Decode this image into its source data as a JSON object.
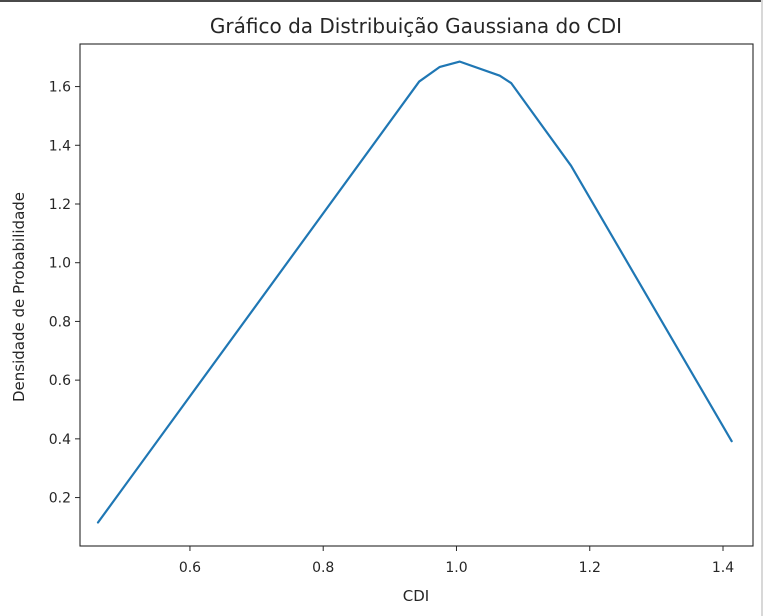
{
  "chart_data": {
    "type": "line",
    "title": "Gráfico da Distribuição Gaussiana do CDI",
    "xlabel": "CDI",
    "ylabel": "Densidade de Probabilidade",
    "xlim": [
      0.435,
      1.445
    ],
    "ylim": [
      0.035,
      1.745
    ],
    "xticks": [
      0.6,
      0.8,
      1.0,
      1.2,
      1.4
    ],
    "xtick_labels": [
      "0.6",
      "0.8",
      "1.0",
      "1.2",
      "1.4"
    ],
    "yticks": [
      0.2,
      0.4,
      0.6,
      0.8,
      1.0,
      1.2,
      1.4,
      1.6
    ],
    "ytick_labels": [
      "0.2",
      "0.4",
      "0.6",
      "0.8",
      "1.0",
      "1.2",
      "1.4",
      "1.6"
    ],
    "grid": false,
    "series": [
      {
        "color": "#1f77b4",
        "x": [
          0.462,
          0.944,
          0.975,
          1.005,
          1.065,
          1.082,
          1.172,
          1.413
        ],
        "y": [
          0.115,
          1.617,
          1.667,
          1.685,
          1.637,
          1.612,
          1.33,
          0.392
        ]
      }
    ]
  },
  "colors": {
    "line": "#1f77b4",
    "axes": "#262626",
    "background": "#ffffff"
  }
}
